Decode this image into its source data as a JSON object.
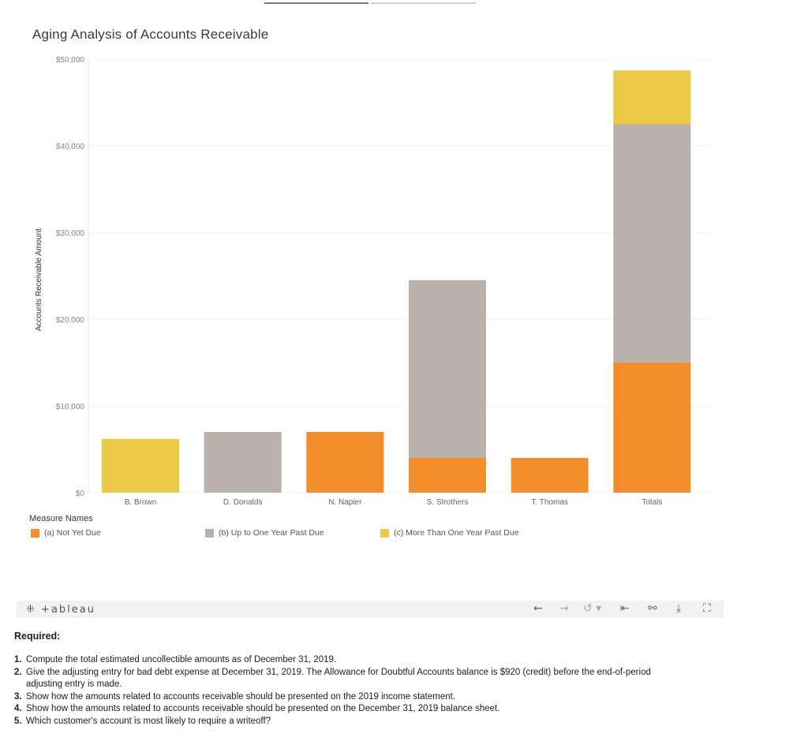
{
  "title": "Aging Analysis of Accounts Receivable",
  "chart_data": {
    "type": "bar",
    "stacked": true,
    "title": "Aging Analysis of Accounts Receivable",
    "xlabel": "",
    "ylabel": "Accounts Receivable Amount",
    "ylim": [
      0,
      50000
    ],
    "yticks": [
      0,
      10000,
      20000,
      30000,
      40000,
      50000
    ],
    "ytick_labels": [
      "$0",
      "$10,000",
      "$20,000",
      "$30,000",
      "$40,000",
      "$50,000"
    ],
    "categories": [
      "B. Brown",
      "D. Donalds",
      "N. Napier",
      "S. Strothers",
      "T. Thomas",
      "Totals"
    ],
    "series": [
      {
        "name": "(a) Not Yet Due",
        "color": "#f28e2b",
        "values": [
          0,
          0,
          7000,
          4000,
          4000,
          15000
        ]
      },
      {
        "name": "(b) Up to One Year Past Due",
        "color": "#bab0ac",
        "values": [
          0,
          7000,
          0,
          20500,
          0,
          27500
        ]
      },
      {
        "name": "(c) More Than One Year Past Due",
        "color": "#edc948",
        "values": [
          6200,
          0,
          0,
          0,
          0,
          6200
        ]
      }
    ],
    "legend_title": "Measure Names",
    "legend_position": "bottom"
  },
  "legend": {
    "title": "Measure Names",
    "items": [
      {
        "label": "(a) Not Yet Due",
        "color": "#f28e2b"
      },
      {
        "label": "(b) Up to One Year Past Due",
        "color": "#bab0ac"
      },
      {
        "label": "(c) More Than One Year Past Due",
        "color": "#edc948"
      }
    ]
  },
  "toolbar": {
    "logo": "+ableau",
    "logo_mark": "⁜",
    "undo": "←",
    "redo": "→",
    "revert": "↺ ▾",
    "reset": "⇤",
    "share": "⚯",
    "download": "⤓",
    "fullscreen": "⛶"
  },
  "required": {
    "heading": "Required:",
    "questions": [
      {
        "num": "1.",
        "text": "Compute the total estimated uncollectible amounts as of December 31, 2019."
      },
      {
        "num": "2.",
        "text": "Give the adjusting entry for bad debt expense at December 31, 2019.  The Allowance for Doubtful Accounts balance is $920 (credit) before the end-of-period adjusting entry is made."
      },
      {
        "num": "3.",
        "text": "Show how the amounts related to accounts receivable should be presented on the 2019 income statement."
      },
      {
        "num": "4.",
        "text": "Show how the amounts related to accounts receivable should be presented on the December 31, 2019 balance sheet."
      },
      {
        "num": "5.",
        "text": "Which customer's account is most likely to require a writeoff?"
      }
    ]
  }
}
